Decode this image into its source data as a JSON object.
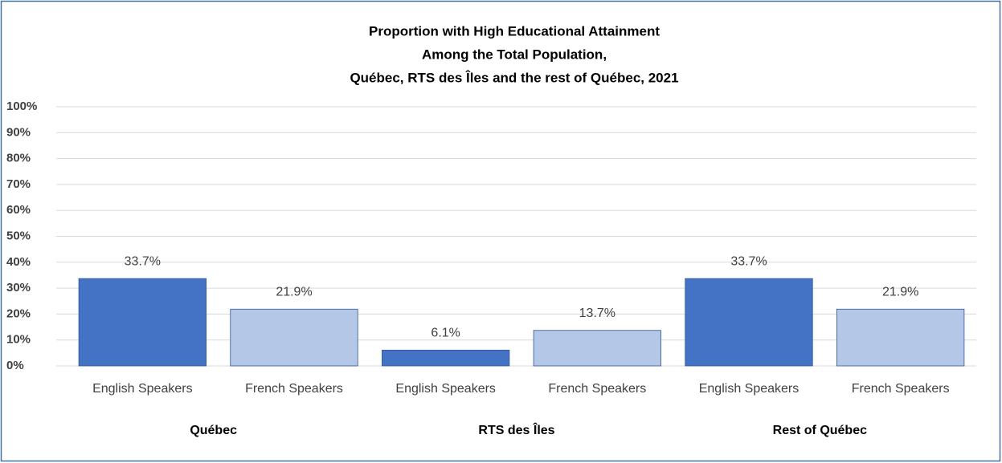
{
  "chart_data": {
    "type": "bar",
    "title": [
      "Proportion with High Educational  Attainment",
      "Among the Total Population,",
      "Québec, RTS des Îles and the rest of Québec, 2021"
    ],
    "categories": [
      "English Speakers",
      "French Speakers",
      "English Speakers",
      "French Speakers",
      "English Speakers",
      "French Speakers"
    ],
    "groups": [
      "Québec",
      "RTS des Îles",
      "Rest of Québec"
    ],
    "values": [
      33.7,
      21.9,
      6.1,
      13.7,
      33.7,
      21.9
    ],
    "value_labels": [
      "33.7%",
      "21.9%",
      "6.1%",
      "13.7%",
      "33.7%",
      "21.9%"
    ],
    "colors": [
      "#4472c4",
      "#b4c7e7",
      "#4472c4",
      "#b4c7e7",
      "#4472c4",
      "#b4c7e7"
    ],
    "ylim": [
      0,
      100
    ],
    "yticks": [
      {
        "value": 0,
        "label": "0%"
      },
      {
        "value": 10,
        "label": "10%"
      },
      {
        "value": 20,
        "label": "20%"
      },
      {
        "value": 30,
        "label": "30%"
      },
      {
        "value": 40,
        "label": "40%"
      },
      {
        "value": 50,
        "label": "50%"
      },
      {
        "value": 60,
        "label": "60%"
      },
      {
        "value": 70,
        "label": "70%"
      },
      {
        "value": 80,
        "label": "80%"
      },
      {
        "value": 90,
        "label": "90%"
      },
      {
        "value": 100,
        "label": "100%"
      }
    ],
    "grid": true
  }
}
